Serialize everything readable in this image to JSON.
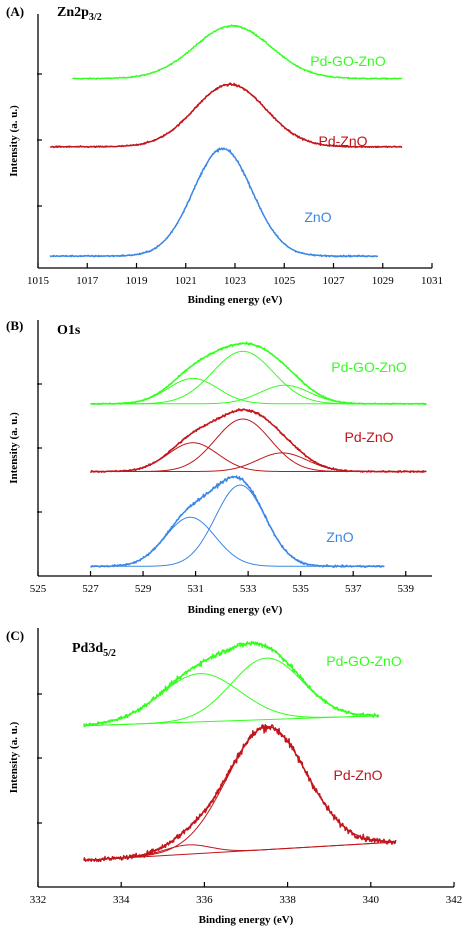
{
  "chart_data": [
    {
      "type": "line",
      "panel": "(A)",
      "title": "Zn2p",
      "title_sub": "3/2",
      "xlabel": "Binding energy (eV)",
      "ylabel": "Intensity (a. u.)",
      "xlim": [
        1015,
        1031
      ],
      "xticks": [
        "1015",
        "1017",
        "1019",
        "1021",
        "1023",
        "1025",
        "1027",
        "1029",
        "1031"
      ],
      "y_ticks": 4,
      "series": [
        {
          "name": "Pd-GO-ZnO",
          "color": "#33ff1e",
          "offset": 4.55,
          "x_range": [
            1016.4,
            1029.8
          ],
          "bg": [
            0,
            0
          ],
          "peaks": [
            [
              1022.9,
              1.35,
              1.55
            ]
          ],
          "noise": 0.035,
          "fit": false
        },
        {
          "name": "Pd-ZnO",
          "color": "#c0161c",
          "offset": 2.8,
          "x_range": [
            1015.5,
            1029.8
          ],
          "bg": [
            0,
            0
          ],
          "peaks": [
            [
              1022.8,
              1.6,
              1.45
            ]
          ],
          "noise": 0.05,
          "fit": true
        },
        {
          "name": "ZnO",
          "color": "#3a87e6",
          "offset": 0.0,
          "x_range": [
            1015.5,
            1028.8
          ],
          "bg": [
            0,
            0
          ],
          "peaks": [
            [
              1022.5,
              2.75,
              1.2
            ]
          ],
          "noise": 0.05,
          "fit": true
        }
      ]
    },
    {
      "type": "line",
      "panel": "(B)",
      "title": "O1s",
      "title_sub": "",
      "xlabel": "Binding energy (eV)",
      "ylabel": "Intensity (a. u.)",
      "xlim": [
        525,
        540
      ],
      "xticks": [
        "525",
        "527",
        "529",
        "531",
        "533",
        "535",
        "537",
        "539"
      ],
      "y_ticks": 4,
      "series": [
        {
          "name": "Pd-GO-ZnO",
          "color": "#33ff1e",
          "offset": 4.95,
          "x_range": [
            527.0,
            539.8
          ],
          "bg": [
            0,
            0
          ],
          "peaks": [
            [
              530.9,
              0.75,
              0.95
            ],
            [
              532.8,
              1.55,
              1.15
            ],
            [
              534.4,
              0.55,
              0.95
            ]
          ],
          "noise": 0.05,
          "fit": true
        },
        {
          "name": "Pd-ZnO",
          "color": "#c0161c",
          "offset": 2.95,
          "x_range": [
            527.0,
            539.8
          ],
          "bg": [
            0,
            0
          ],
          "peaks": [
            [
              530.9,
              0.85,
              0.95
            ],
            [
              532.8,
              1.55,
              1.05
            ],
            [
              534.3,
              0.55,
              0.95
            ]
          ],
          "noise": 0.06,
          "fit": true
        },
        {
          "name": "ZnO",
          "color": "#3a87e6",
          "offset": 0.15,
          "x_range": [
            527.0,
            538.2
          ],
          "bg": [
            0,
            0
          ],
          "peaks": [
            [
              530.8,
              1.45,
              0.95
            ],
            [
              532.7,
              2.4,
              0.95
            ]
          ],
          "noise": 0.07,
          "fit": true
        }
      ]
    },
    {
      "type": "line",
      "panel": "(C)",
      "title": "Pd3d",
      "title_sub": "5/2",
      "xlabel": "Binding energy (eV)",
      "ylabel": "Intensity (a. u.)",
      "xlim": [
        332,
        342
      ],
      "xticks": [
        "332",
        "334",
        "336",
        "338",
        "340",
        "342"
      ],
      "y_ticks": 4,
      "series": [
        {
          "name": "Pd-GO-ZnO",
          "color": "#33ff1e",
          "offset": 4.05,
          "x_range": [
            333.1,
            340.2
          ],
          "bg": [
            0,
            0.3
          ],
          "peaks": [
            [
              335.9,
              1.45,
              0.95
            ],
            [
              337.5,
              1.85,
              0.85
            ]
          ],
          "noise": 0.12,
          "fit": true
        },
        {
          "name": "Pd-ZnO",
          "color": "#c0161c",
          "offset": 0.0,
          "x_range": [
            333.1,
            340.6
          ],
          "bg": [
            0,
            0.55
          ],
          "peaks": [
            [
              335.6,
              0.28,
              0.55
            ],
            [
              337.5,
              3.7,
              0.95
            ]
          ],
          "noise": 0.16,
          "fit": true
        }
      ]
    }
  ]
}
